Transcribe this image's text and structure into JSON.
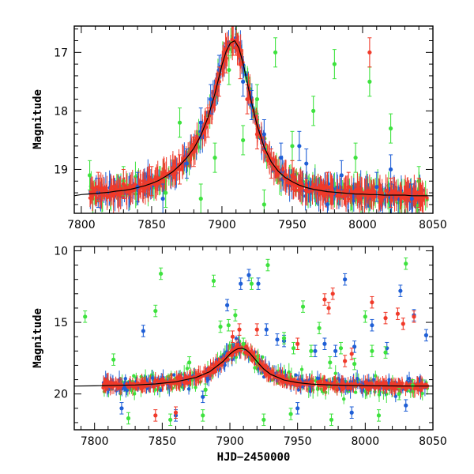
{
  "figure": {
    "xlabel": "HJD−2450000"
  },
  "colors": {
    "blue": "#1f5fd6",
    "green": "#3ee23e",
    "red": "#f03a2a",
    "frame": "#000000",
    "model": "#000000"
  },
  "chart_data": [
    {
      "type": "scatter",
      "panel": "top",
      "title": "",
      "xlabel": "",
      "ylabel": "Magnitude",
      "xlim": [
        7795,
        8050
      ],
      "ylim": [
        19.75,
        16.55
      ],
      "y_inverted": true,
      "xticks": [
        7800,
        7850,
        7900,
        7950,
        8000,
        8050
      ],
      "yticks": [
        17,
        18,
        19
      ],
      "grid": false,
      "legend": "none",
      "series": [
        {
          "color": "blue",
          "kind": "errorbar-points",
          "x": [
            7812,
            7840,
            7858,
            7875,
            7885,
            7892,
            7898,
            7915,
            7921,
            7930,
            7942,
            7955,
            7960,
            7975,
            7985,
            8010,
            8020,
            8035
          ],
          "y": [
            19.4,
            19.3,
            19.5,
            18.9,
            18.2,
            17.8,
            17.3,
            17.5,
            17.9,
            18.4,
            18.8,
            18.6,
            18.9,
            19.6,
            19.1,
            19.3,
            19.0,
            19.5
          ]
        },
        {
          "color": "green",
          "kind": "errorbar-points",
          "x": [
            7806,
            7830,
            7860,
            7870,
            7885,
            7895,
            7905,
            7915,
            7925,
            7930,
            7938,
            7950,
            7965,
            7980,
            7995,
            8005,
            8020,
            8040
          ],
          "y": [
            19.1,
            19.2,
            19.4,
            18.2,
            19.5,
            18.8,
            17.3,
            18.5,
            17.8,
            19.6,
            17.0,
            18.6,
            18.0,
            17.2,
            18.8,
            17.5,
            18.3,
            19.2
          ]
        },
        {
          "color": "red",
          "kind": "errorbar-points",
          "x": [
            7812,
            7830,
            7850,
            7870,
            7880,
            7890,
            7898,
            7903,
            7908,
            7913,
            7918,
            7925,
            7935,
            7950,
            7975,
            7990,
            8005,
            8020,
            8040
          ],
          "y": [
            19.3,
            19.25,
            19.2,
            19.0,
            18.7,
            18.2,
            17.5,
            17.1,
            16.8,
            17.2,
            17.8,
            18.4,
            18.9,
            19.1,
            19.3,
            19.3,
            17.0,
            19.4,
            19.4
          ]
        }
      ],
      "model": {
        "color": "model",
        "x": [
          7795,
          7800,
          7805,
          7810,
          7815,
          7820,
          7825,
          7830,
          7835,
          7840,
          7845,
          7850,
          7855,
          7860,
          7865,
          7870,
          7875,
          7880,
          7885,
          7890,
          7895,
          7900,
          7903,
          7906,
          7909,
          7912,
          7915,
          7918,
          7921,
          7925,
          7930,
          7935,
          7940,
          7945,
          7950,
          7955,
          7960,
          7965,
          7970,
          7975,
          7980,
          7985,
          7990,
          7995,
          8000,
          8005,
          8010,
          8015,
          8020,
          8025,
          8030,
          8035,
          8040,
          8045,
          8050
        ],
        "y": [
          19.45,
          19.43,
          19.42,
          19.41,
          19.4,
          19.39,
          19.37,
          19.36,
          19.34,
          19.31,
          19.28,
          19.24,
          19.19,
          19.12,
          19.04,
          18.93,
          18.8,
          18.64,
          18.42,
          18.12,
          17.71,
          17.22,
          16.98,
          16.84,
          16.8,
          16.92,
          17.18,
          17.52,
          17.85,
          18.25,
          18.62,
          18.87,
          19.03,
          19.14,
          19.21,
          19.27,
          19.31,
          19.34,
          19.36,
          19.38,
          19.39,
          19.4,
          19.41,
          19.42,
          19.42,
          19.43,
          19.43,
          19.44,
          19.44,
          19.44,
          19.44,
          19.45,
          19.45,
          19.45,
          19.45
        ]
      }
    },
    {
      "type": "scatter",
      "panel": "bottom",
      "title": "",
      "xlabel": "HJD−2450000",
      "ylabel": "Magnitude",
      "xlim": [
        7785,
        8050
      ],
      "ylim": [
        22.5,
        9.7
      ],
      "y_inverted": true,
      "xticks": [
        7800,
        7850,
        7900,
        7950,
        8000,
        8050
      ],
      "yticks": [
        10,
        15,
        20
      ],
      "grid": false,
      "legend": "none",
      "series": [
        {
          "color": "blue",
          "kind": "errorbar-points",
          "x": [
            7836,
            7898,
            7908,
            7914,
            7921,
            7927,
            7935,
            7940,
            7963,
            7970,
            7978,
            7985,
            7992,
            8005,
            8016,
            8026,
            8036,
            8045,
            7820,
            7860,
            7880,
            7950,
            7990,
            8030
          ],
          "y": [
            15.6,
            13.8,
            12.3,
            11.7,
            12.3,
            15.5,
            16.2,
            16.3,
            17.0,
            16.5,
            17.0,
            12.0,
            16.7,
            15.2,
            16.8,
            12.8,
            14.5,
            15.9,
            21.0,
            21.5,
            20.2,
            21.0,
            21.3,
            20.8
          ]
        },
        {
          "color": "green",
          "kind": "errorbar-points",
          "x": [
            7793,
            7814,
            7845,
            7849,
            7870,
            7882,
            7888,
            7893,
            7899,
            7904,
            7910,
            7916,
            7920,
            7928,
            7940,
            7947,
            7954,
            7960,
            7966,
            7974,
            7982,
            7992,
            8000,
            8005,
            8015,
            8025,
            8030,
            8035,
            7825,
            7856,
            7880,
            7925,
            7945,
            7975,
            8010
          ],
          "y": [
            14.6,
            17.6,
            14.2,
            11.6,
            17.8,
            19.7,
            12.1,
            15.3,
            15.2,
            14.5,
            16.5,
            12.3,
            17.7,
            11.0,
            16.1,
            16.8,
            13.9,
            17.0,
            15.4,
            17.8,
            16.8,
            17.9,
            14.6,
            17.0,
            17.1,
            20.0,
            10.9,
            19.4,
            21.7,
            21.8,
            21.5,
            21.8,
            21.4,
            21.8,
            21.5
          ]
        },
        {
          "color": "red",
          "kind": "errorbar-points",
          "x": [
            7845,
            7860,
            7902,
            7907,
            7920,
            7950,
            7970,
            7973,
            7976,
            7985,
            7990,
            8005,
            8015,
            8024,
            8028,
            8036
          ],
          "y": [
            21.5,
            21.3,
            16.0,
            15.5,
            15.5,
            16.5,
            13.4,
            14.0,
            13.0,
            17.7,
            17.2,
            13.6,
            14.7,
            14.4,
            15.1,
            14.6
          ]
        }
      ],
      "model": {
        "color": "model",
        "x": [
          7785,
          7800,
          7815,
          7830,
          7845,
          7860,
          7875,
          7885,
          7895,
          7900,
          7903,
          7906,
          7909,
          7912,
          7915,
          7918,
          7921,
          7925,
          7930,
          7940,
          7950,
          7960,
          7975,
          7990,
          8005,
          8020,
          8035,
          8050
        ],
        "y": [
          19.45,
          19.43,
          19.4,
          19.37,
          19.3,
          19.15,
          18.85,
          18.45,
          17.72,
          17.22,
          16.98,
          16.84,
          16.8,
          16.92,
          17.18,
          17.52,
          17.85,
          18.25,
          18.62,
          19.03,
          19.21,
          19.31,
          19.38,
          19.41,
          19.43,
          19.44,
          19.45,
          19.45
        ]
      }
    }
  ]
}
